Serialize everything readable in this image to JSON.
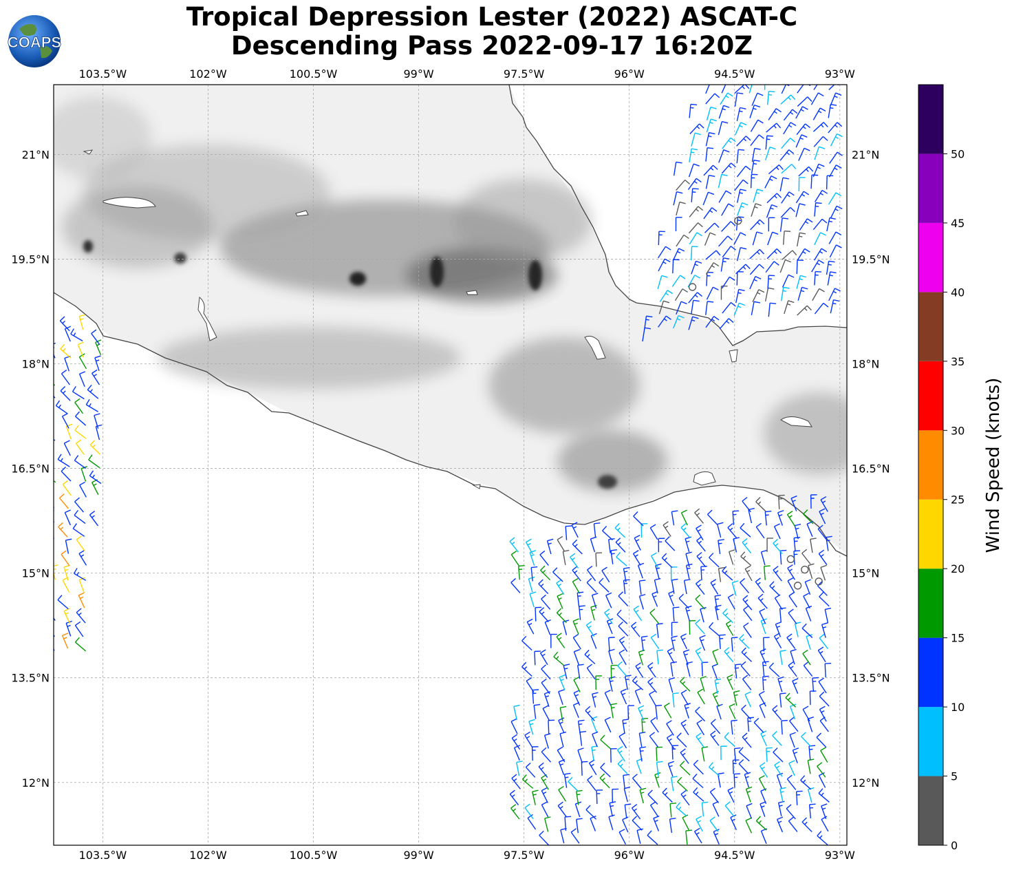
{
  "title": {
    "line1": "Tropical Depression Lester (2022) ASCAT-C",
    "line2": "Descending Pass 2022-09-17 16:20Z"
  },
  "logo": {
    "text": "COAPS"
  },
  "map": {
    "extent": {
      "lon_min": -104.2,
      "lon_max": -92.9,
      "lat_min": 11.1,
      "lat_max": 22.0
    },
    "lon_ticks": [
      {
        "value": -103.5,
        "label": "103.5°W"
      },
      {
        "value": -102.0,
        "label": "102°W"
      },
      {
        "value": -100.5,
        "label": "100.5°W"
      },
      {
        "value": -99.0,
        "label": "99°W"
      },
      {
        "value": -97.5,
        "label": "97.5°W"
      },
      {
        "value": -96.0,
        "label": "96°W"
      },
      {
        "value": -94.5,
        "label": "94.5°W"
      },
      {
        "value": -93.0,
        "label": "93°W"
      }
    ],
    "lat_ticks": [
      {
        "value": 21.0,
        "label": "21°N"
      },
      {
        "value": 19.5,
        "label": "19.5°N"
      },
      {
        "value": 18.0,
        "label": "18°N"
      },
      {
        "value": 16.5,
        "label": "16.5°N"
      },
      {
        "value": 15.0,
        "label": "15°N"
      },
      {
        "value": 13.5,
        "label": "13.5°N"
      },
      {
        "value": 12.0,
        "label": "12°N"
      }
    ],
    "gridlines": true,
    "background": "grayscale terrain"
  },
  "colorbar": {
    "title": "Wind Speed (knots)",
    "bins": [
      {
        "min": 0,
        "max": 5,
        "color": "#595959"
      },
      {
        "min": 5,
        "max": 10,
        "color": "#00bfff"
      },
      {
        "min": 10,
        "max": 15,
        "color": "#0033ff"
      },
      {
        "min": 15,
        "max": 20,
        "color": "#009900"
      },
      {
        "min": 20,
        "max": 25,
        "color": "#ffd700"
      },
      {
        "min": 25,
        "max": 30,
        "color": "#ff8c00"
      },
      {
        "min": 30,
        "max": 35,
        "color": "#ff0000"
      },
      {
        "min": 35,
        "max": 40,
        "color": "#843c24"
      },
      {
        "min": 40,
        "max": 45,
        "color": "#ee00ee"
      },
      {
        "min": 45,
        "max": 50,
        "color": "#8800bb"
      },
      {
        "min": 50,
        "max": 55,
        "color": "#2d0060"
      }
    ],
    "tick_labels": [
      "0",
      "5",
      "10",
      "15",
      "20",
      "25",
      "30",
      "35",
      "40",
      "45",
      "50"
    ]
  },
  "wind_swaths": [
    {
      "name": "west-swath",
      "lon": [
        -104.2,
        -103.2
      ],
      "lat": [
        13.9,
        18.7
      ],
      "dominant": "#0033ff",
      "zones": [
        {
          "lat": [
            17.5,
            18.7
          ],
          "colors": [
            "#009900",
            "#ffd700",
            "#0033ff"
          ]
        },
        {
          "lat": [
            16.0,
            17.5
          ],
          "colors": [
            "#009900",
            "#0033ff",
            "#ffd700"
          ]
        },
        {
          "lat": [
            13.9,
            16.0
          ],
          "colors": [
            "#ffd700",
            "#ff8c00"
          ]
        }
      ]
    },
    {
      "name": "northeast-swath",
      "lon": [
        -95.8,
        -93.0
      ],
      "lat": [
        18.3,
        21.9
      ],
      "dominant": "#0033ff",
      "zones": [
        {
          "lat": [
            20.5,
            21.9
          ],
          "colors": [
            "#0033ff",
            "#00bfff"
          ]
        },
        {
          "lat": [
            19.0,
            20.5
          ],
          "colors": [
            "#00bfff",
            "#595959",
            "#0033ff"
          ]
        },
        {
          "lat": [
            18.3,
            19.0
          ],
          "colors": [
            "#595959",
            "#00bfff",
            "#0033ff"
          ]
        }
      ]
    },
    {
      "name": "southeast-swath",
      "lon": [
        -97.8,
        -93.1
      ],
      "lat": [
        11.1,
        16.1
      ],
      "dominant": "#0033ff",
      "zones": [
        {
          "lat": [
            14.6,
            16.1
          ],
          "colors": [
            "#0033ff",
            "#00bfff",
            "#009900",
            "#595959"
          ]
        },
        {
          "lat": [
            12.5,
            14.6
          ],
          "colors": [
            "#0033ff",
            "#009900",
            "#00bfff"
          ]
        },
        {
          "lat": [
            11.1,
            12.5
          ],
          "colors": [
            "#0033ff",
            "#009900",
            "#00bfff"
          ]
        }
      ]
    }
  ]
}
